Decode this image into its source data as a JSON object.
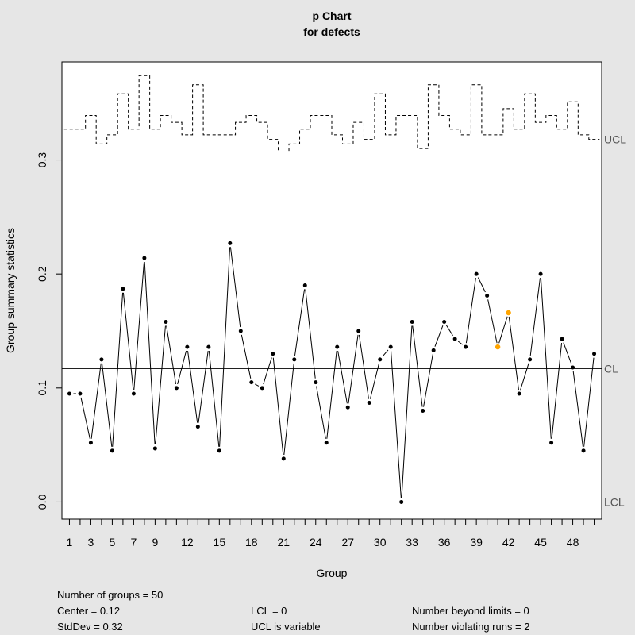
{
  "chart_data": {
    "type": "line",
    "title": "p Chart",
    "subtitle": "for defects",
    "xlabel": "Group",
    "ylabel": "Group summary statistics",
    "xlim": [
      0.3,
      50.7
    ],
    "ylim": [
      -0.015,
      0.386
    ],
    "x_ticks": [
      1,
      2,
      3,
      4,
      5,
      6,
      7,
      8,
      9,
      10,
      11,
      12,
      13,
      14,
      15,
      16,
      17,
      18,
      19,
      20,
      21,
      22,
      23,
      24,
      25,
      26,
      27,
      28,
      29,
      30,
      31,
      32,
      33,
      34,
      35,
      36,
      37,
      38,
      39,
      40,
      41,
      42,
      43,
      44,
      45,
      46,
      47,
      48,
      49,
      50
    ],
    "x_tick_labels": [
      "1",
      "3",
      "5",
      "7",
      "9",
      "12",
      "15",
      "18",
      "21",
      "24",
      "27",
      "30",
      "33",
      "36",
      "39",
      "42",
      "45",
      "48"
    ],
    "x_tick_label_positions": [
      1,
      3,
      5,
      7,
      9,
      12,
      15,
      18,
      21,
      24,
      27,
      30,
      33,
      36,
      39,
      42,
      45,
      48
    ],
    "y_ticks": [
      0.0,
      0.1,
      0.2,
      0.3
    ],
    "y_tick_labels": [
      "0.0",
      "0.1",
      "0.2",
      "0.3"
    ],
    "series": [
      {
        "name": "",
        "values": [
          0.095,
          0.095,
          0.052,
          0.125,
          0.045,
          0.187,
          0.095,
          0.214,
          0.047,
          0.158,
          0.1,
          0.136,
          0.066,
          0.136,
          0.045,
          0.227,
          0.15,
          0.105,
          0.1,
          0.13,
          0.038,
          0.125,
          0.19,
          0.105,
          0.052,
          0.136,
          0.083,
          0.15,
          0.087,
          0.125,
          0.136,
          0.0,
          0.158,
          0.08,
          0.133,
          0.158,
          0.143,
          0.136,
          0.2,
          0.181,
          0.136,
          0.166,
          0.095,
          0.125,
          0.2,
          0.052,
          0.143,
          0.118,
          0.045,
          0.13
        ]
      }
    ],
    "highlighted_points": [
      41,
      42
    ],
    "highlight_color": "#ffa500",
    "center": 0.117,
    "lcl": 0.0,
    "ucl": [
      0.327,
      0.327,
      0.339,
      0.314,
      0.322,
      0.358,
      0.327,
      0.374,
      0.327,
      0.339,
      0.333,
      0.322,
      0.366,
      0.322,
      0.322,
      0.322,
      0.333,
      0.339,
      0.333,
      0.318,
      0.307,
      0.314,
      0.327,
      0.339,
      0.339,
      0.322,
      0.314,
      0.333,
      0.318,
      0.358,
      0.322,
      0.339,
      0.339,
      0.31,
      0.366,
      0.339,
      0.327,
      0.322,
      0.366,
      0.322,
      0.322,
      0.345,
      0.327,
      0.358,
      0.333,
      0.339,
      0.327,
      0.351,
      0.322,
      0.318
    ],
    "limit_labels": {
      "ucl": "UCL",
      "cl": "CL",
      "lcl": "LCL"
    },
    "colors": {
      "background": "#e6e6e6",
      "plot_bg": "#ffffff",
      "line": "#000000",
      "limit_label": "#555555"
    },
    "grid": false,
    "legend": "none"
  },
  "stats": {
    "groups": "Number of groups = 50",
    "center": "Center = 0.12",
    "stddev": "StdDev = 0.32",
    "lcl": "LCL = 0",
    "ucl": "UCL is variable",
    "beyond": "Number beyond limits = 0",
    "runs": "Number violating runs = 2"
  }
}
